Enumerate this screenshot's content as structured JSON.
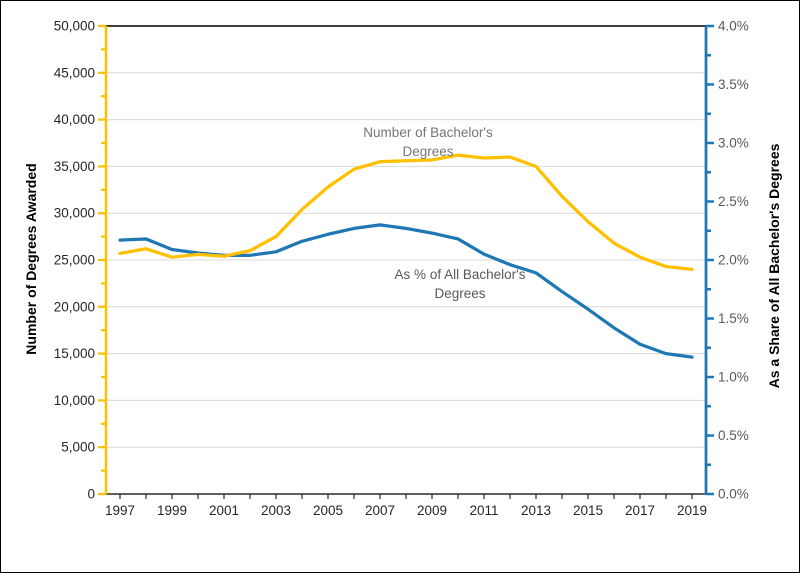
{
  "figure": {
    "background_color": "#FFFFFF",
    "border_color": "#000000"
  },
  "chart_data": {
    "type": "line",
    "title": "",
    "x": [
      1997,
      1998,
      1999,
      2000,
      2001,
      2002,
      2003,
      2004,
      2005,
      2006,
      2007,
      2008,
      2009,
      2010,
      2011,
      2012,
      2013,
      2014,
      2015,
      2016,
      2017,
      2018,
      2019
    ],
    "series": [
      {
        "name": "Number of Bachelor's Degrees",
        "axis": "left",
        "color": "#FFC000",
        "values": [
          25700,
          26200,
          25300,
          25600,
          25400,
          26000,
          27500,
          30400,
          32800,
          34700,
          35500,
          35600,
          35700,
          36200,
          35900,
          36000,
          35000,
          31800,
          29100,
          26800,
          25300,
          24300,
          24000
        ]
      },
      {
        "name": "As % of All Bachelor's Degrees",
        "axis": "right",
        "color": "#1F77B4",
        "values": [
          2.17,
          2.18,
          2.09,
          2.06,
          2.04,
          2.04,
          2.07,
          2.16,
          2.22,
          2.27,
          2.3,
          2.27,
          2.23,
          2.18,
          2.05,
          1.96,
          1.89,
          1.73,
          1.58,
          1.42,
          1.28,
          1.2,
          1.17
        ]
      }
    ],
    "left_axis": {
      "title": "Number of Degrees Awarded",
      "min": 0,
      "max": 50000,
      "major_step": 5000,
      "minor_step": 2500,
      "tick_labels": [
        "0",
        "5,000",
        "10,000",
        "15,000",
        "20,000",
        "25,000",
        "30,000",
        "35,000",
        "40,000",
        "45,000",
        "50,000"
      ],
      "axis_color": "#FFC000",
      "label_color": "#262626"
    },
    "right_axis": {
      "title": "As a Share of All Bachelor's Degrees",
      "min": 0,
      "max": 4,
      "major_step": 0.5,
      "minor_step": 0.25,
      "tick_labels": [
        "0.0%",
        "0.5%",
        "1.0%",
        "1.5%",
        "2.0%",
        "2.5%",
        "3.0%",
        "3.5%",
        "4.0%"
      ],
      "axis_color": "#1F77B4",
      "label_color": "#595959"
    },
    "x_axis": {
      "tick_label_years": [
        1997,
        1999,
        2001,
        2003,
        2005,
        2007,
        2009,
        2011,
        2013,
        2015,
        2017,
        2019
      ],
      "axis_color": "#000000",
      "label_color": "#262626"
    },
    "grid": true,
    "grid_color": "#D9D9D9",
    "legend_position": "none",
    "annotations": [
      {
        "text": "Number of Bachelor's\nDegrees",
        "color": "#757575"
      },
      {
        "text": "As % of All Bachelor's\nDegrees",
        "color": "#595959"
      }
    ]
  }
}
